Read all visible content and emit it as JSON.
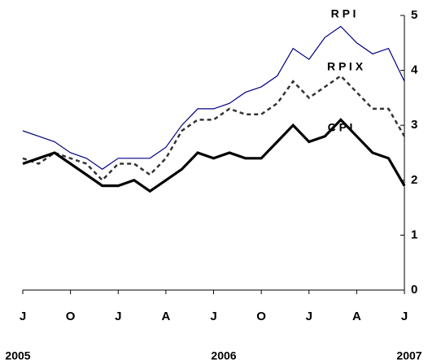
{
  "chart_data": {
    "type": "line",
    "categories": [
      "J",
      null,
      null,
      "O",
      null,
      null,
      "J",
      null,
      null,
      "A",
      null,
      null,
      "J",
      null,
      null,
      "O",
      null,
      null,
      "J",
      null,
      null,
      "A",
      null,
      null,
      "J"
    ],
    "year_labels": [
      "2005",
      "2006",
      "2007"
    ],
    "series": [
      {
        "name": "R P I",
        "color": "#000080",
        "width": 1.2,
        "dash": false,
        "values": [
          2.9,
          2.8,
          2.7,
          2.5,
          2.4,
          2.2,
          2.4,
          2.4,
          2.4,
          2.6,
          3.0,
          3.3,
          3.3,
          3.4,
          3.6,
          3.7,
          3.9,
          4.4,
          4.2,
          4.6,
          4.8,
          4.5,
          4.3,
          4.4,
          3.8
        ]
      },
      {
        "name": "R P I X",
        "color": "#333333",
        "width": 2.5,
        "dash": true,
        "values": [
          2.4,
          2.3,
          2.5,
          2.4,
          2.3,
          2.0,
          2.3,
          2.3,
          2.1,
          2.4,
          2.9,
          3.1,
          3.1,
          3.3,
          3.2,
          3.2,
          3.4,
          3.8,
          3.5,
          3.7,
          3.9,
          3.6,
          3.3,
          3.3,
          2.8
        ]
      },
      {
        "name": "C P I",
        "color": "#000000",
        "width": 3.2,
        "dash": false,
        "values": [
          2.3,
          2.4,
          2.5,
          2.3,
          2.1,
          1.9,
          1.9,
          2.0,
          1.8,
          2.0,
          2.2,
          2.5,
          2.4,
          2.5,
          2.4,
          2.4,
          2.7,
          3.0,
          2.7,
          2.8,
          3.1,
          2.8,
          2.5,
          2.4,
          1.9
        ]
      }
    ],
    "ylim": [
      0,
      5
    ],
    "yticks": [
      0,
      1,
      2,
      3,
      4,
      5
    ]
  }
}
